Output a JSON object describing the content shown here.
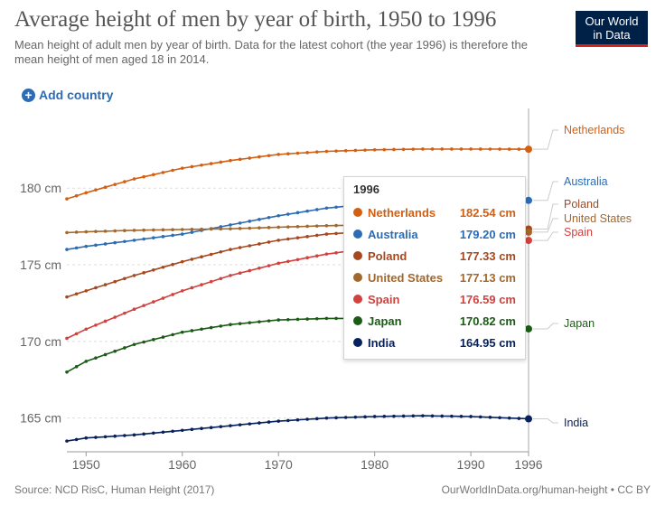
{
  "header": {
    "title": "Average height of men by year of birth, 1950 to 1996",
    "subtitle": "Mean height of adult men by year of birth. Data for the latest cohort (the year 1996) is therefore the mean height of men aged 18 in 2014."
  },
  "logo": {
    "line1": "Our World",
    "line2": "in Data",
    "bg": "#002147",
    "accent": "#ce261e"
  },
  "controls": {
    "add_country": "Add country",
    "add_icon": "plus-circle-icon"
  },
  "footer": {
    "source": "Source: NCD RisC, Human Height (2017)",
    "url": "OurWorldInData.org/human-height • CC BY"
  },
  "tooltip": {
    "year": "1996",
    "rows": [
      {
        "name": "Netherlands",
        "value": "182.54 cm",
        "color": "#d35f12"
      },
      {
        "name": "Australia",
        "value": "179.20 cm",
        "color": "#2c6cb4"
      },
      {
        "name": "Poland",
        "value": "177.33 cm",
        "color": "#a5481f"
      },
      {
        "name": "United States",
        "value": "177.13 cm",
        "color": "#a3672c"
      },
      {
        "name": "Spain",
        "value": "176.59 cm",
        "color": "#d1413e"
      },
      {
        "name": "Japan",
        "value": "170.82 cm",
        "color": "#1b5b16"
      },
      {
        "name": "India",
        "value": "164.95 cm",
        "color": "#06215c"
      }
    ]
  },
  "chart_data": {
    "type": "line",
    "title": "Average height of men by year of birth, 1950 to 1996",
    "xlabel": "",
    "ylabel": "",
    "xlim": [
      1948,
      1996
    ],
    "ylim": [
      162.8,
      185.2
    ],
    "x_ticks": [
      1950,
      1960,
      1970,
      1980,
      1990,
      1996
    ],
    "x_tick_labels": [
      "1950",
      "1960",
      "1970",
      "1980",
      "1990",
      "1996"
    ],
    "y_ticks": [
      165,
      170,
      175,
      180
    ],
    "y_tick_labels": [
      "165 cm",
      "170 cm",
      "175 cm",
      "180 cm"
    ],
    "grid": "horizontal dashed",
    "legend": "right-end labels",
    "series": [
      {
        "name": "Netherlands",
        "color": "#d35f12",
        "x": [
          1948,
          1950,
          1955,
          1960,
          1965,
          1970,
          1975,
          1980,
          1985,
          1990,
          1996
        ],
        "y": [
          179.3,
          179.7,
          180.6,
          181.3,
          181.8,
          182.2,
          182.4,
          182.5,
          182.55,
          182.55,
          182.54
        ]
      },
      {
        "name": "Australia",
        "color": "#2c6cb4",
        "x": [
          1948,
          1950,
          1955,
          1960,
          1965,
          1970,
          1975,
          1980,
          1985,
          1990,
          1996
        ],
        "y": [
          176.0,
          176.2,
          176.6,
          177.0,
          177.6,
          178.2,
          178.7,
          179.0,
          179.1,
          179.2,
          179.2
        ]
      },
      {
        "name": "Poland",
        "color": "#a5481f",
        "x": [
          1948,
          1950,
          1955,
          1960,
          1965,
          1970,
          1975,
          1980,
          1985,
          1990,
          1996
        ],
        "y": [
          172.9,
          173.3,
          174.3,
          175.2,
          176.0,
          176.6,
          177.0,
          177.2,
          177.3,
          177.33,
          177.33
        ]
      },
      {
        "name": "United States",
        "color": "#a3672c",
        "x": [
          1948,
          1950,
          1955,
          1960,
          1965,
          1970,
          1975,
          1980,
          1985,
          1990,
          1996
        ],
        "y": [
          177.1,
          177.15,
          177.25,
          177.3,
          177.35,
          177.45,
          177.55,
          177.6,
          177.5,
          177.3,
          177.13
        ]
      },
      {
        "name": "Spain",
        "color": "#d1413e",
        "x": [
          1948,
          1950,
          1955,
          1960,
          1965,
          1970,
          1975,
          1980,
          1985,
          1990,
          1996
        ],
        "y": [
          170.2,
          170.8,
          172.1,
          173.3,
          174.3,
          175.1,
          175.7,
          176.1,
          176.4,
          176.5,
          176.59
        ]
      },
      {
        "name": "Japan",
        "color": "#1b5b16",
        "x": [
          1948,
          1950,
          1955,
          1960,
          1965,
          1970,
          1975,
          1980,
          1985,
          1990,
          1996
        ],
        "y": [
          168.0,
          168.7,
          169.8,
          170.6,
          171.1,
          171.4,
          171.5,
          171.5,
          171.3,
          171.0,
          170.82
        ]
      },
      {
        "name": "India",
        "color": "#06215c",
        "x": [
          1948,
          1950,
          1955,
          1960,
          1965,
          1970,
          1975,
          1980,
          1985,
          1990,
          1996
        ],
        "y": [
          163.5,
          163.7,
          163.9,
          164.2,
          164.5,
          164.8,
          165.0,
          165.1,
          165.15,
          165.1,
          164.95
        ]
      }
    ],
    "end_labels": [
      {
        "name": "Netherlands",
        "text": "Netherlands",
        "color": "#d35f12"
      },
      {
        "name": "Australia",
        "text": "Australia",
        "color": "#2c6cb4"
      },
      {
        "name": "Poland",
        "text": "Poland",
        "color": "#a5481f"
      },
      {
        "name": "United States",
        "text": "United States",
        "color": "#a3672c"
      },
      {
        "name": "Spain",
        "text": "Spain",
        "color": "#d1413e"
      },
      {
        "name": "Japan",
        "text": "Japan",
        "color": "#1b5b16"
      },
      {
        "name": "India",
        "text": "India",
        "color": "#06215c"
      }
    ]
  }
}
